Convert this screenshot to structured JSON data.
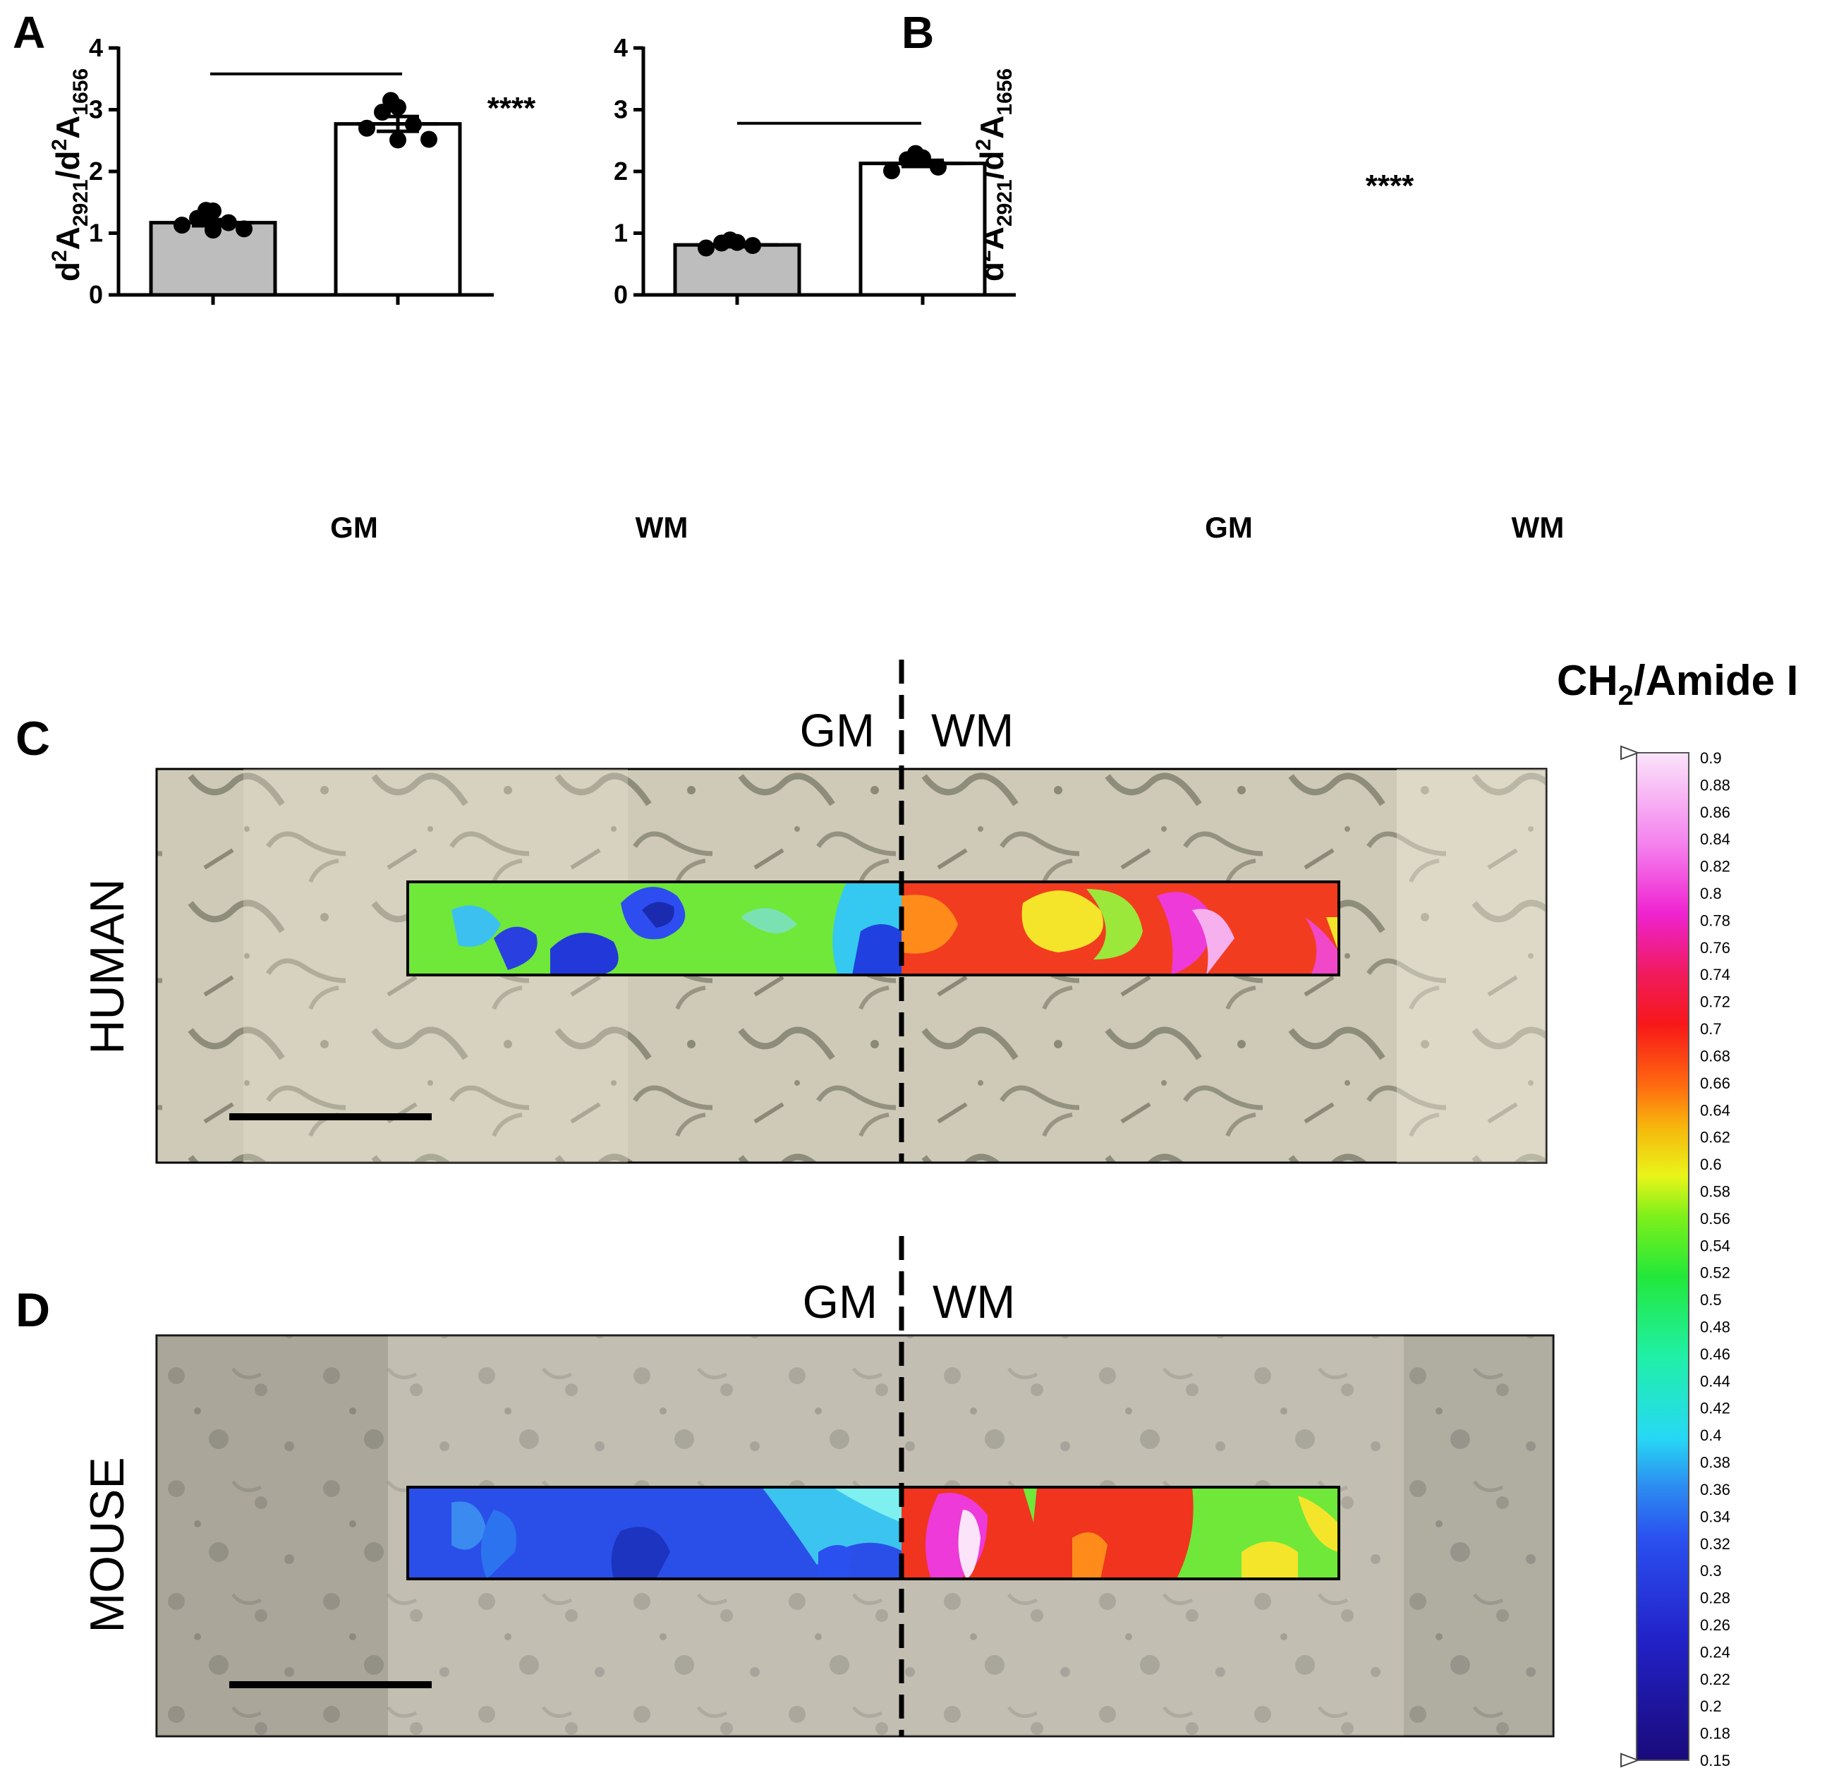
{
  "colors": {
    "gm_bar": "#bdbdbd",
    "wm_bar": "#ffffff",
    "ink": "#000000"
  },
  "chart_data": [
    {
      "panel": "A",
      "type": "bar",
      "categories": [
        "GM",
        "WM"
      ],
      "values": [
        1.17,
        2.77
      ],
      "sem": [
        0.05,
        0.12
      ],
      "points": [
        [
          1.37,
          1.36,
          1.24,
          1.17,
          1.13,
          1.07,
          1.05
        ],
        [
          3.15,
          3.04,
          2.96,
          2.76,
          2.7,
          2.52,
          2.51
        ]
      ],
      "ylim": [
        0,
        4
      ],
      "yticks": [
        "0",
        "1",
        "2",
        "3",
        "4"
      ],
      "ylabel": {
        "base": "d",
        "sup1": "2",
        "a1": "A",
        "sub1": "2921",
        "slash": "/d",
        "sup2": "2",
        "a2": "A",
        "sub2": "1656"
      },
      "significance": "****",
      "sig_level": 3.58
    },
    {
      "panel": "B",
      "type": "bar",
      "categories": [
        "GM",
        "WM"
      ],
      "values": [
        0.81,
        2.13
      ],
      "sem": [
        0.03,
        0.05
      ],
      "points": [
        [
          0.89,
          0.85,
          0.84,
          0.8,
          0.76
        ],
        [
          2.29,
          2.22,
          2.19,
          2.07,
          2.01
        ]
      ],
      "ylim": [
        0,
        4
      ],
      "yticks": [
        "0",
        "1",
        "2",
        "3",
        "4"
      ],
      "ylabel": {
        "base": "d",
        "sup1": "2",
        "a1": "A",
        "sub1": "2921",
        "slash": "/d",
        "sup2": "2",
        "a2": "A",
        "sub2": "1656"
      },
      "significance": "****",
      "sig_level": 2.78
    },
    {
      "panel": "C",
      "type": "heatmap",
      "row_label": "HUMAN",
      "gm_label": "GM",
      "wm_label": "WM"
    },
    {
      "panel": "D",
      "type": "heatmap",
      "row_label": "MOUSE",
      "gm_label": "GM",
      "wm_label": "WM"
    }
  ],
  "colorbar": {
    "title_main": "CH",
    "title_sub": "2",
    "title_rest": "/Amide I",
    "labels": [
      "0.9",
      "0.88",
      "0.86",
      "0.84",
      "0.82",
      "0.8",
      "0.78",
      "0.76",
      "0.74",
      "0.72",
      "0.7",
      "0.68",
      "0.66",
      "0.64",
      "0.62",
      "0.6",
      "0.58",
      "0.56",
      "0.54",
      "0.52",
      "0.5",
      "0.48",
      "0.46",
      "0.44",
      "0.42",
      "0.4",
      "0.38",
      "0.36",
      "0.34",
      "0.32",
      "0.3",
      "0.28",
      "0.26",
      "0.24",
      "0.22",
      "0.2",
      "0.18",
      "0.15"
    ]
  }
}
